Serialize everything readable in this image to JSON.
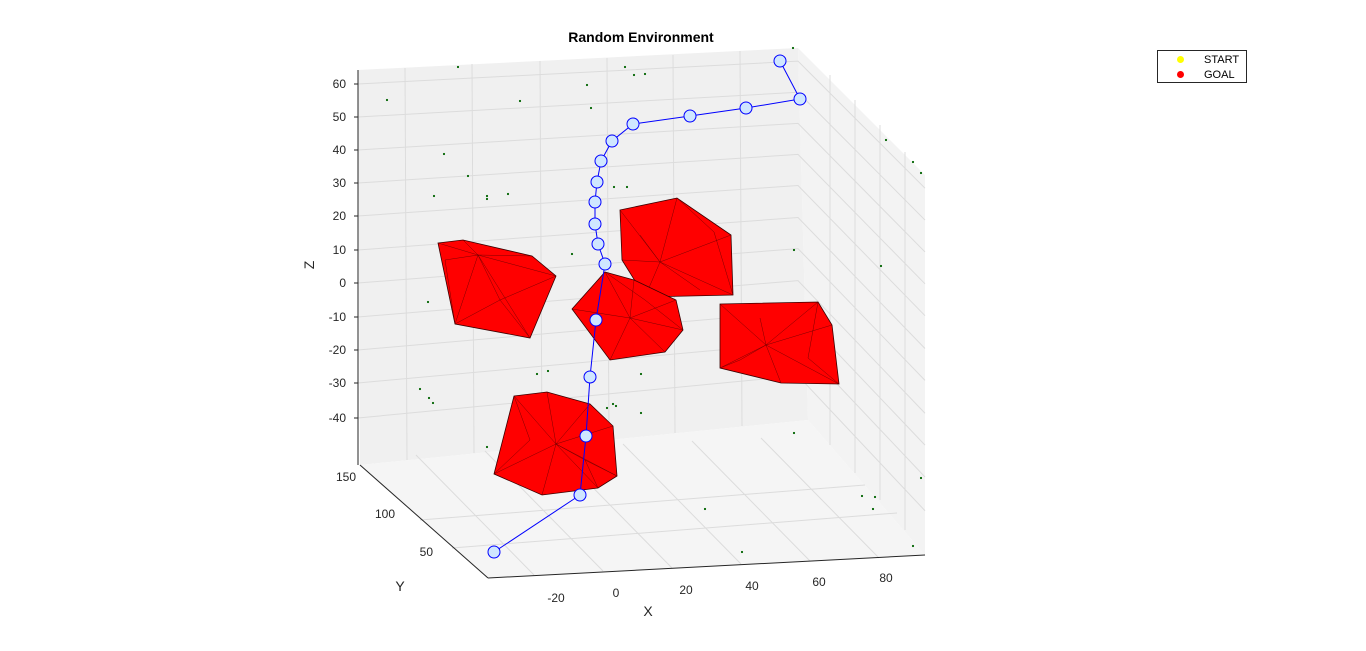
{
  "chart_data": {
    "type": "scatter3d",
    "title": "Random Environment",
    "xlabel": "X",
    "ylabel": "Y",
    "zlabel": "Z",
    "x_ticks": [
      "-20",
      "0",
      "20",
      "40",
      "60",
      "80"
    ],
    "y_ticks": [
      "50",
      "100",
      "150"
    ],
    "z_ticks": [
      "60",
      "50",
      "40",
      "30",
      "20",
      "10",
      "0",
      "-10",
      "-20",
      "-30",
      "-40"
    ],
    "legend": {
      "placement": "top-right",
      "entries": [
        {
          "label": "START",
          "color": "#ffff00"
        },
        {
          "label": "GOAL",
          "color": "#ff0000"
        }
      ]
    },
    "colors": {
      "obstacle": "#ff0000",
      "path": "#0000ff",
      "node_fill": "#cfe6ff",
      "scatter": "#006400",
      "pane": "#f0f0f0",
      "grid": "#dcdcdc"
    },
    "grid": true
  }
}
